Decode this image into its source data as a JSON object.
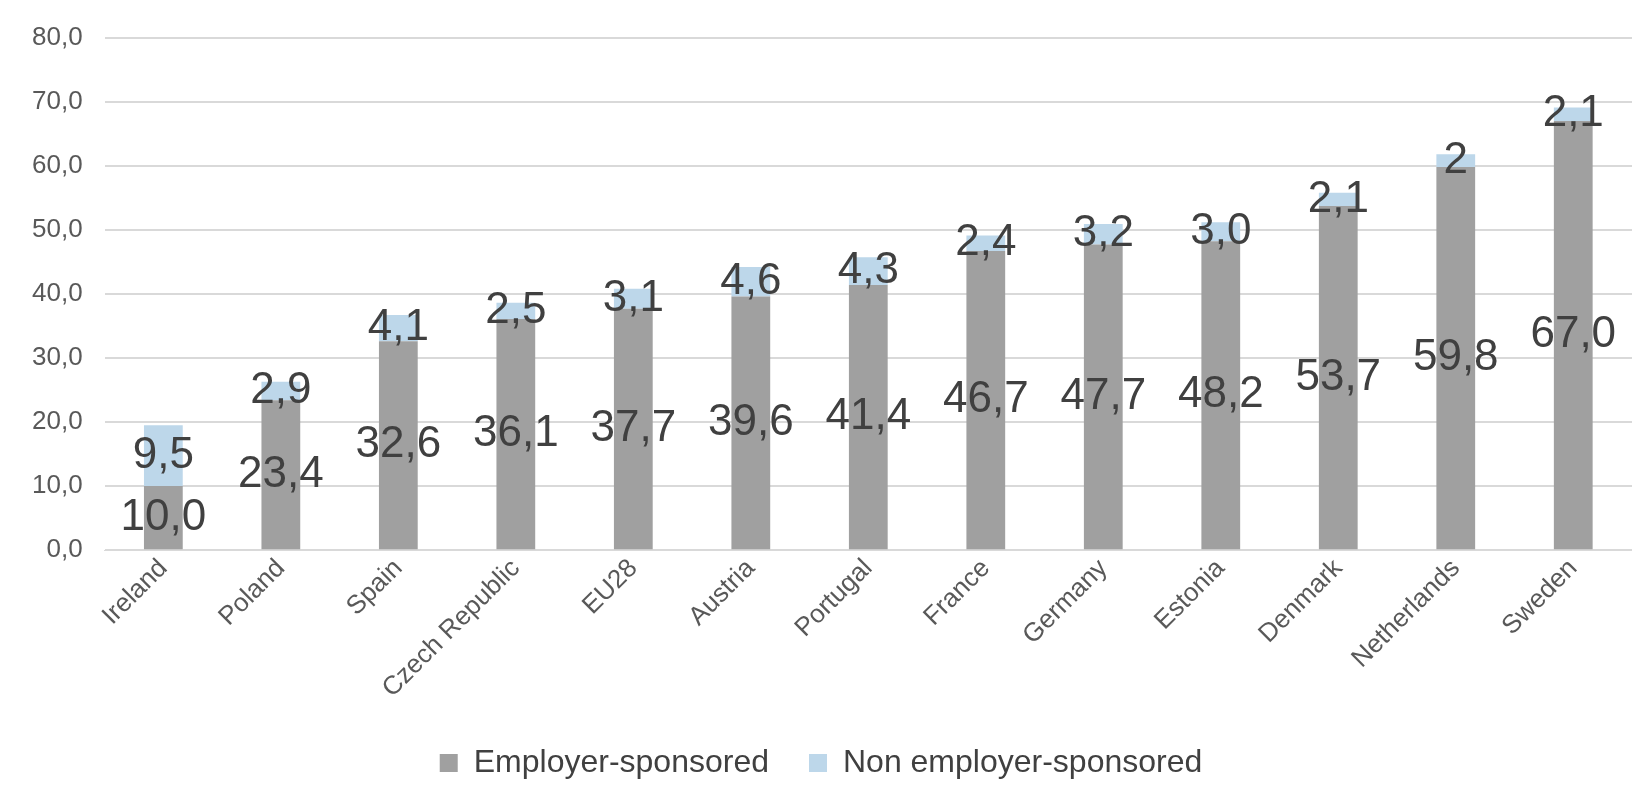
{
  "chart_data": {
    "type": "bar",
    "stacked": true,
    "categories": [
      "Ireland",
      "Poland",
      "Spain",
      "Czech Republic",
      "EU28",
      "Austria",
      "Portugal",
      "France",
      "Germany",
      "Estonia",
      "Denmark",
      "Netherlands",
      "Sweden"
    ],
    "series": [
      {
        "name": "Employer-sponsored",
        "color": "#a0a0a0",
        "values": [
          10.0,
          23.4,
          32.6,
          36.1,
          37.7,
          39.6,
          41.4,
          46.7,
          47.7,
          48.2,
          53.7,
          59.8,
          67.0
        ],
        "value_labels": [
          "10,0",
          "23,4",
          "32,6",
          "36,1",
          "37,7",
          "39,6",
          "41,4",
          "46,7",
          "47,7",
          "48,2",
          "53,7",
          "59,8",
          "67,0"
        ]
      },
      {
        "name": "Non employer-sponsored",
        "color": "#bdd7ea",
        "values": [
          9.5,
          2.9,
          4.1,
          2.5,
          3.1,
          4.6,
          4.3,
          2.4,
          3.2,
          3.0,
          2.1,
          2,
          2.1
        ],
        "value_labels": [
          "9,5",
          "2,9",
          "4,1",
          "2,5",
          "3,1",
          "4,6",
          "4,3",
          "2,4",
          "3,2",
          "3,0",
          "2,1",
          "2",
          "2,1"
        ]
      }
    ],
    "ylim": [
      0,
      80
    ],
    "yticks": [
      {
        "value": 0,
        "label": "0,0"
      },
      {
        "value": 10,
        "label": "10,0"
      },
      {
        "value": 20,
        "label": "20,0"
      },
      {
        "value": 30,
        "label": "30,0"
      },
      {
        "value": 40,
        "label": "40,0"
      },
      {
        "value": 50,
        "label": "50,0"
      },
      {
        "value": 60,
        "label": "60,0"
      },
      {
        "value": 70,
        "label": "70,0"
      },
      {
        "value": 80,
        "label": "80,0"
      }
    ],
    "grid": "y",
    "legend": "bottom"
  }
}
